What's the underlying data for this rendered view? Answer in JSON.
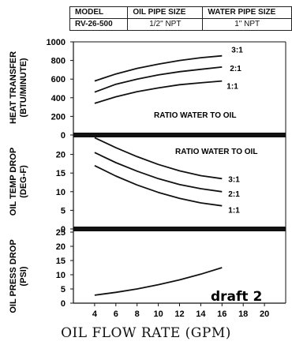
{
  "spec_table": {
    "headers": [
      "MODEL",
      "OIL PIPE SIZE",
      "WATER PIPE SIZE"
    ],
    "row": [
      "RV-26-500",
      "1/2\" NPT",
      "1\" NPT"
    ]
  },
  "chart_data": [
    {
      "type": "line",
      "ylabel": "HEAT TRANSFER (BTU/MINUTE)",
      "ylim": [
        0,
        1000
      ],
      "yticks": [
        0,
        200,
        400,
        600,
        800,
        1000
      ],
      "annotation": "RATIO WATER TO OIL",
      "series": [
        {
          "name": "3:1",
          "x": [
            4,
            6,
            8,
            10,
            12,
            14,
            16
          ],
          "values": [
            580,
            655,
            715,
            760,
            800,
            830,
            850
          ]
        },
        {
          "name": "2:1",
          "x": [
            4,
            6,
            8,
            10,
            12,
            14,
            16
          ],
          "values": [
            460,
            545,
            600,
            645,
            680,
            705,
            730
          ]
        },
        {
          "name": "1:1",
          "x": [
            4,
            6,
            8,
            10,
            12,
            14,
            16
          ],
          "values": [
            340,
            410,
            465,
            505,
            540,
            560,
            580
          ]
        }
      ]
    },
    {
      "type": "line",
      "ylabel": "OIL TEMP DROP (DEG-F)",
      "ylim": [
        0,
        25
      ],
      "yticks": [
        0,
        5,
        10,
        15,
        20
      ],
      "annotation": "RATIO WATER TO OIL",
      "series": [
        {
          "name": "3:1",
          "x": [
            4,
            6,
            8,
            10,
            12,
            14,
            16
          ],
          "values": [
            24.5,
            21.8,
            19.4,
            17.3,
            15.6,
            14.3,
            13.5
          ]
        },
        {
          "name": "2:1",
          "x": [
            4,
            6,
            8,
            10,
            12,
            14,
            16
          ],
          "values": [
            20.5,
            17.8,
            15.5,
            13.5,
            11.9,
            10.8,
            10.0
          ]
        },
        {
          "name": "1:1",
          "x": [
            4,
            6,
            8,
            10,
            12,
            14,
            16
          ],
          "values": [
            17.0,
            14.2,
            11.8,
            9.8,
            8.2,
            7.0,
            6.2
          ]
        }
      ]
    },
    {
      "type": "line",
      "ylabel": "OIL PRESS DROP (PSI)",
      "ylim": [
        0,
        25
      ],
      "yticks": [
        0,
        5,
        10,
        15,
        20,
        25
      ],
      "series": [
        {
          "x": [
            4,
            6,
            8,
            10,
            12,
            14,
            16
          ],
          "values": [
            2.8,
            3.8,
            5.0,
            6.5,
            8.2,
            10.2,
            12.5
          ]
        }
      ]
    }
  ],
  "x_axis": {
    "ticks": [
      4,
      6,
      8,
      10,
      12,
      14,
      16,
      18,
      20
    ],
    "xlim": [
      2,
      22
    ],
    "title": "OIL FLOW RATE (GPM)"
  },
  "watermark": "draft 2"
}
